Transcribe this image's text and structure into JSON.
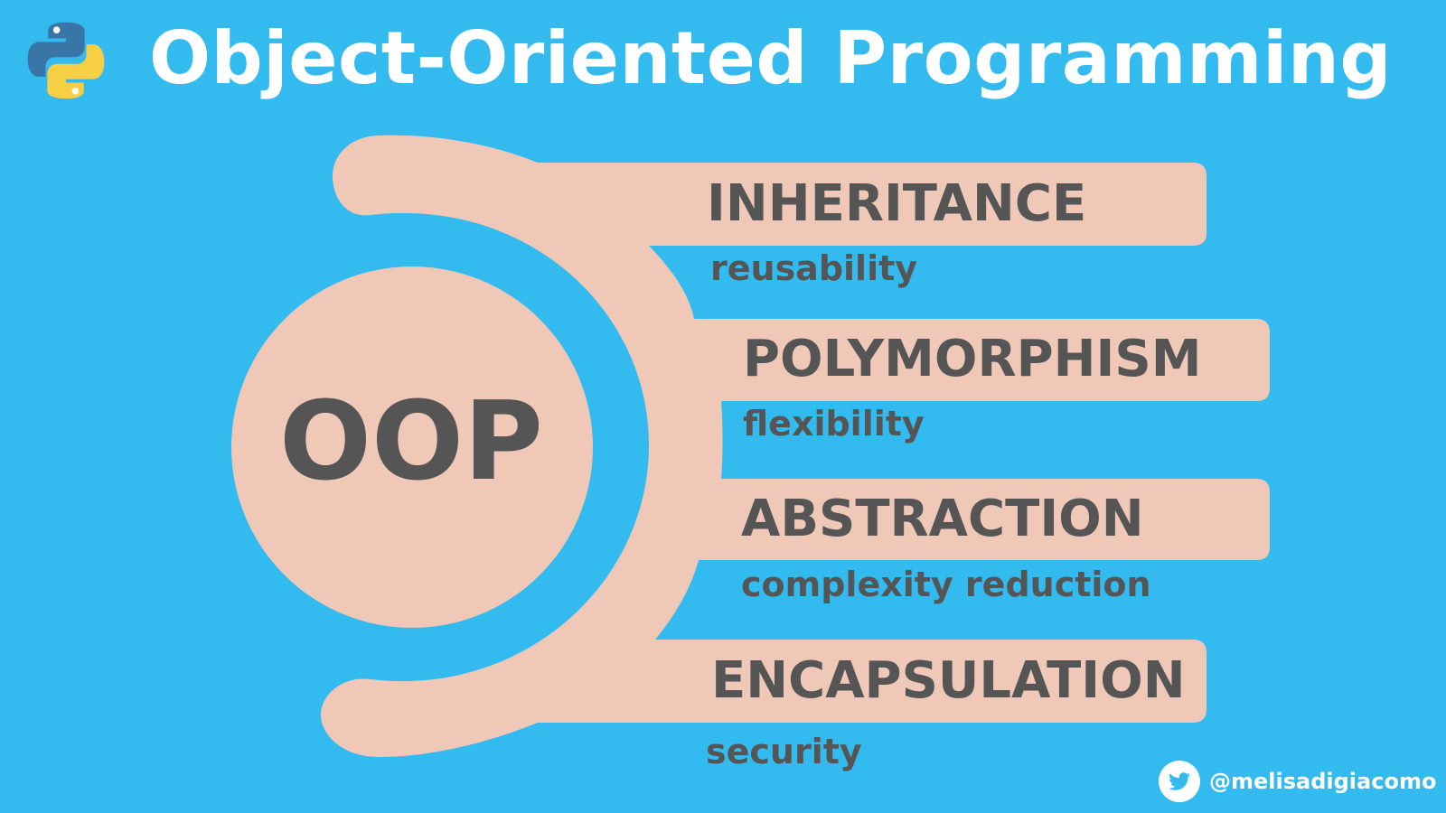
{
  "header": {
    "title": "Object-Oriented Programming",
    "logo_icon": "python-logo-icon",
    "colors": {
      "blue": "#3a75a7",
      "yellow": "#f7cf45"
    }
  },
  "diagram": {
    "center_label": "OOP",
    "pillars": [
      {
        "name": "INHERITANCE",
        "description": "reusability"
      },
      {
        "name": "POLYMORPHISM",
        "description": "flexibility"
      },
      {
        "name": "ABSTRACTION",
        "description": "complexity reduction"
      },
      {
        "name": "ENCAPSULATION",
        "description": "security"
      }
    ]
  },
  "footer": {
    "handle": "@melisadigiacomo",
    "icon": "twitter-icon"
  },
  "colors": {
    "background": "#33bbf0",
    "shape": "#f0c8b8",
    "text": "#555555",
    "title": "#ffffff"
  }
}
